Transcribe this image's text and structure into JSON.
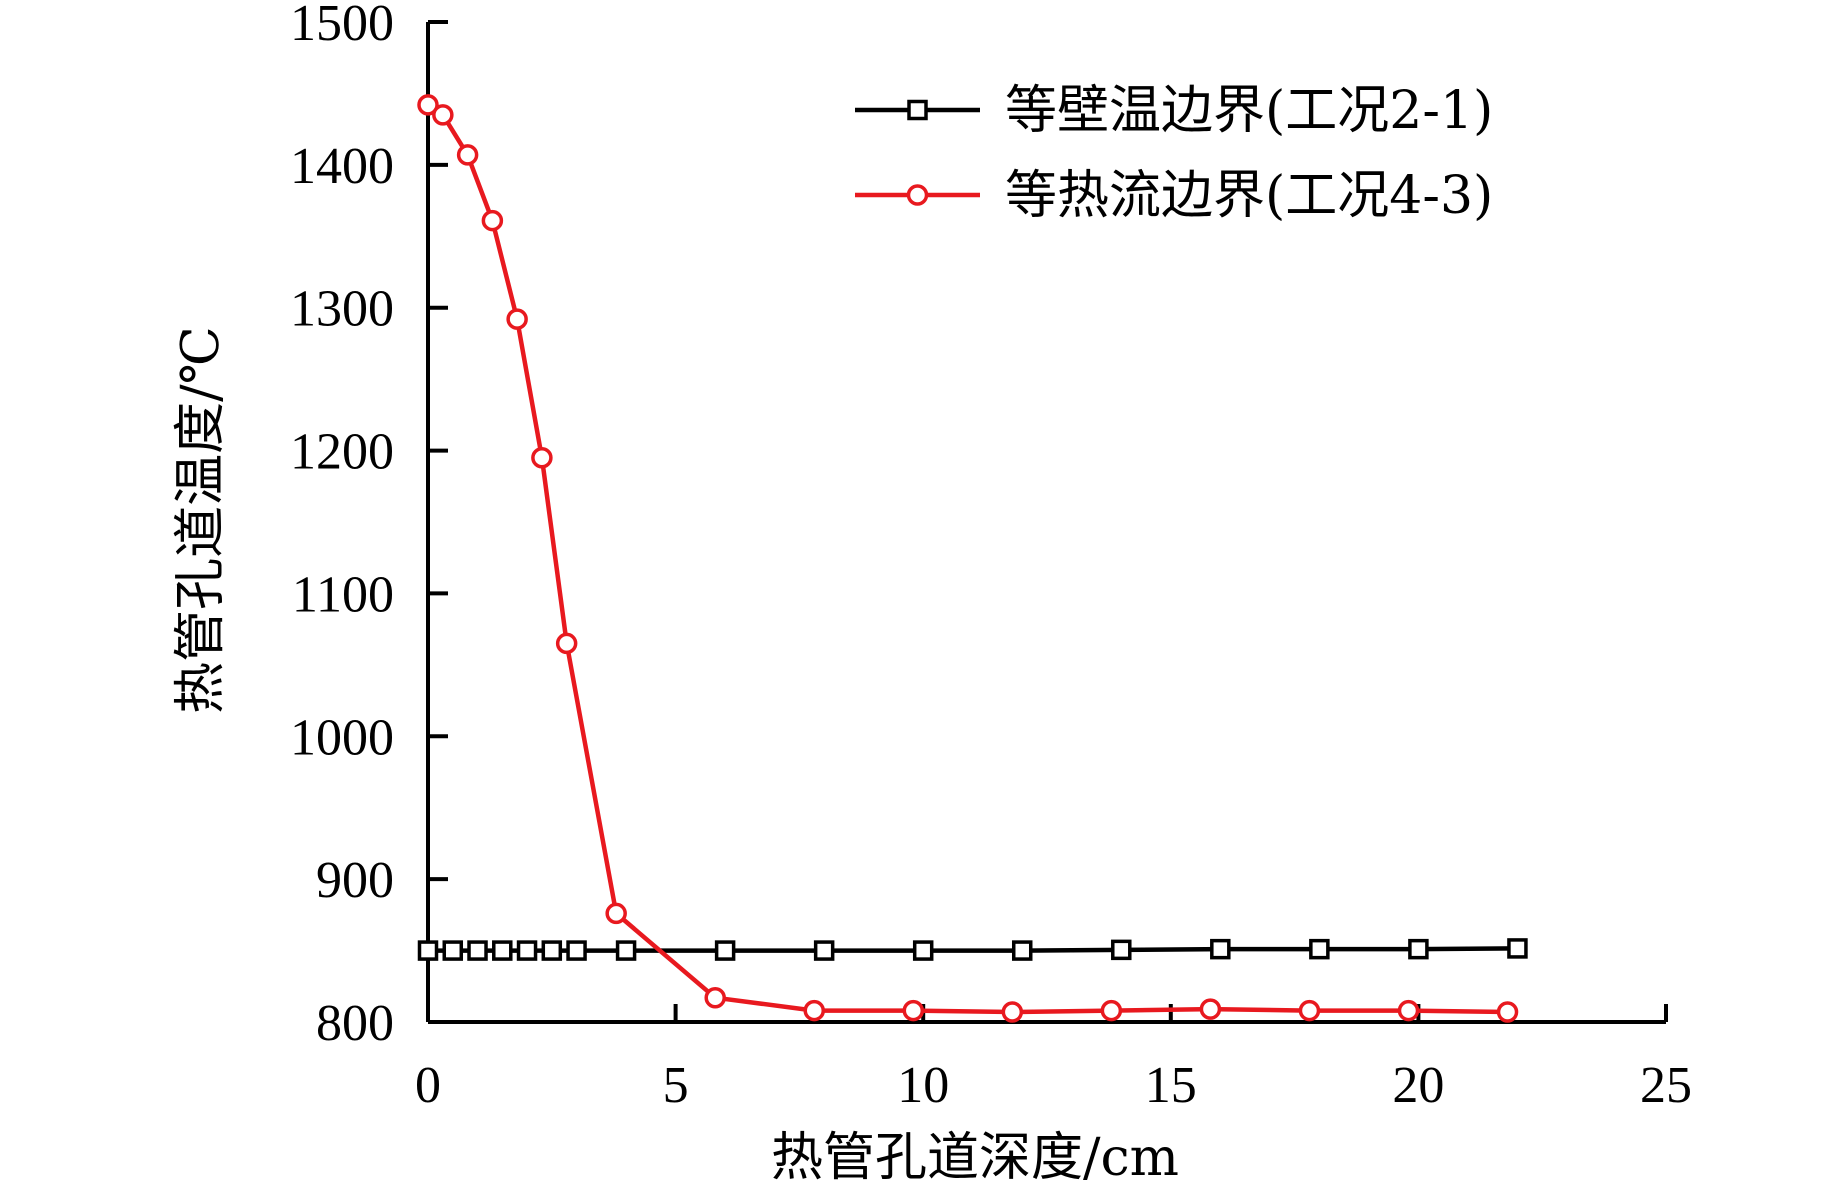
{
  "chart_data": {
    "type": "line",
    "title": "",
    "xlabel": "热管孔道深度/cm",
    "ylabel": "热管孔道温度/℃",
    "xlim": [
      0,
      25
    ],
    "ylim": [
      800,
      1500
    ],
    "xticks": [
      0,
      5,
      10,
      15,
      20,
      25
    ],
    "yticks": [
      800,
      900,
      1000,
      1100,
      1200,
      1300,
      1400,
      1500
    ],
    "grid": false,
    "legend": "top-right",
    "series": [
      {
        "name": "等壁温边界(工况2-1)",
        "color": "#000000",
        "marker": "square",
        "x": [
          0,
          0.5,
          1,
          1.5,
          2,
          2.5,
          3,
          4,
          6,
          8,
          10,
          12,
          14,
          16,
          18,
          20,
          22
        ],
        "y": [
          850,
          850,
          850,
          850,
          850,
          850,
          850,
          850,
          850,
          850,
          850,
          850,
          850.5,
          851,
          851,
          851,
          851.5
        ]
      },
      {
        "name": "等热流边界(工况4-3)",
        "color": "#e8191f",
        "marker": "circle",
        "x": [
          0,
          0.3,
          0.8,
          1.3,
          1.8,
          2.3,
          2.8,
          3.8,
          5.8,
          7.8,
          9.8,
          11.8,
          13.8,
          15.8,
          17.8,
          19.8,
          21.8
        ],
        "y": [
          1442,
          1435,
          1407,
          1361,
          1292,
          1195,
          1065,
          876,
          817,
          808,
          808,
          807,
          808,
          809,
          808,
          808,
          807
        ]
      }
    ]
  }
}
